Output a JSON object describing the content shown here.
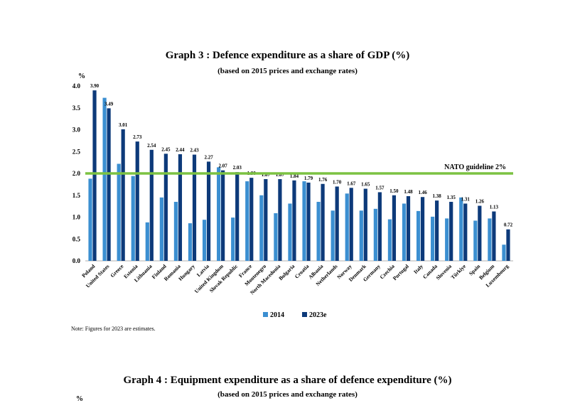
{
  "chart_data": {
    "type": "bar",
    "title": "Graph 3 : Defence expenditure as a share of GDP (%)",
    "subtitle": "(based on 2015 prices and exchange rates)",
    "ylabel": "%",
    "ylim": [
      0,
      4.0
    ],
    "yticks": [
      "0.0",
      "0.5",
      "1.0",
      "1.5",
      "2.0",
      "2.5",
      "3.0",
      "3.5",
      "4.0"
    ],
    "categories": [
      "Poland",
      "United States",
      "Greece",
      "Estonia",
      "Lithuania",
      "Finland",
      "Romania",
      "Hungary",
      "Latvia",
      "United Kingdom",
      "Slovak Republic",
      "France",
      "Montenegro",
      "North Macedonia",
      "Bulgaria",
      "Croatia",
      "Albania",
      "Netherlands",
      "Norway",
      "Denmark",
      "Germany",
      "Czechia",
      "Portugal",
      "Italy",
      "Canada",
      "Slovenia",
      "Türkiye",
      "Spain",
      "Belgium",
      "Luxembourg"
    ],
    "series": [
      {
        "name": "2014",
        "color": "#3b8fd1",
        "values": [
          1.88,
          3.73,
          2.22,
          1.94,
          0.88,
          1.45,
          1.35,
          0.86,
          0.94,
          2.14,
          0.99,
          1.82,
          1.5,
          1.09,
          1.31,
          1.82,
          1.35,
          1.15,
          1.54,
          1.15,
          1.19,
          0.95,
          1.31,
          1.14,
          1.01,
          0.97,
          1.45,
          0.92,
          0.97,
          0.37
        ]
      },
      {
        "name": "2023e",
        "color": "#0d3a7a",
        "values": [
          3.9,
          3.49,
          3.01,
          2.73,
          2.54,
          2.45,
          2.44,
          2.43,
          2.27,
          2.07,
          2.03,
          1.9,
          1.87,
          1.87,
          1.84,
          1.79,
          1.76,
          1.7,
          1.67,
          1.65,
          1.57,
          1.5,
          1.48,
          1.46,
          1.38,
          1.35,
          1.31,
          1.26,
          1.13,
          0.72
        ],
        "labels": [
          "3.90",
          "3.49",
          "3.01",
          "2.73",
          "2.54",
          "2.45",
          "2.44",
          "2.43",
          "2.27",
          "2.07",
          "2.03",
          "1.90",
          "1.87",
          "1.87",
          "1.84",
          "1.79",
          "1.76",
          "1.70",
          "1.67",
          "1.65",
          "1.57",
          "1.50",
          "1.48",
          "1.46",
          "1.38",
          "1.35",
          "1.31",
          "1.26",
          "1.13",
          "0.72"
        ]
      }
    ],
    "reference_line": {
      "value": 2.0,
      "label": "NATO guideline 2%",
      "color": "#7cc242"
    },
    "legend_position": "bottom-center",
    "grid": false
  },
  "note": "Note: Figures for 2023 are estimates.",
  "next_chart": {
    "title": "Graph 4 : Equipment expenditure as a share of defence expenditure (%)",
    "subtitle": "(based on 2015 prices and exchange rates)",
    "ylabel": "%"
  }
}
